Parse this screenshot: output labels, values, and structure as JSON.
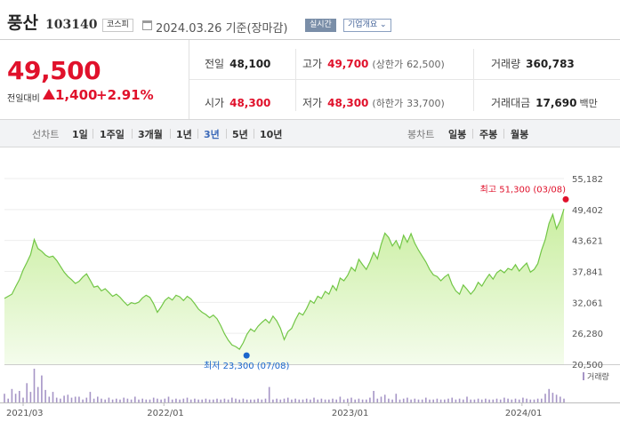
{
  "header": {
    "name": "풍산",
    "code": "103140",
    "market": "코스피",
    "date_text": "2024.03.26 기준(장마감)",
    "realtime_label": "실시간",
    "company_label": "기업개요"
  },
  "quote": {
    "price": "49,500",
    "change_label": "전일대비",
    "change_abs": "1,400",
    "change_pct": "+2.91%",
    "prev_close": {
      "label": "전일",
      "value": "48,100"
    },
    "high": {
      "label": "고가",
      "value": "49,700",
      "limit_label": "(상한가",
      "limit_value": "62,500)"
    },
    "volume": {
      "label": "거래량",
      "value": "360,783"
    },
    "open": {
      "label": "시가",
      "value": "48,300"
    },
    "low": {
      "label": "저가",
      "value": "48,300",
      "limit_label": "(하한가",
      "limit_value": "33,700)"
    },
    "amount": {
      "label": "거래대금",
      "value": "17,690",
      "unit": "백만"
    }
  },
  "toolbar": {
    "line_label": "선차트",
    "periods": [
      "1일",
      "1주일",
      "3개월",
      "1년",
      "3년",
      "5년",
      "10년"
    ],
    "active_period": "3년",
    "candle_label": "봉차트",
    "candle_periods": [
      "일봉",
      "주봉",
      "월봉"
    ]
  },
  "colors": {
    "up": "#e0112b",
    "line": "#72c646",
    "area_top": "#c9ee9f",
    "area_bottom": "#f4fcec",
    "volume": "#a695c6",
    "low_marker": "#1a66cc",
    "high_marker": "#e0112b"
  },
  "chart_data": {
    "type": "area",
    "x_ticks": [
      "2021/03",
      "2022/01",
      "2023/01",
      "2024/01"
    ],
    "y_ticks": [
      55182,
      49402,
      43621,
      37841,
      32061,
      26280,
      20500
    ],
    "y_tick_labels": [
      "55,182",
      "49,402",
      "43,621",
      "37,841",
      "32,061",
      "26,280",
      "20,500"
    ],
    "ylim": [
      20500,
      55182
    ],
    "high_label": "최고 51,300 (03/08)",
    "low_label": "최저 23,300 (07/08)",
    "high_value": 51300,
    "low_value": 23300,
    "volume_label": "거래량",
    "series": [
      {
        "values": [
          32800,
          33200,
          33600,
          35000,
          36300,
          38100,
          39500,
          41000,
          43800,
          42100,
          41600,
          40900,
          40500,
          40700,
          39900,
          38800,
          37700,
          36900,
          36300,
          35600,
          36000,
          36800,
          37400,
          36200,
          34900,
          35100,
          34200,
          34600,
          33900,
          33200,
          33600,
          33000,
          32200,
          31500,
          32000,
          31800,
          32100,
          32900,
          33400,
          33000,
          31800,
          30200,
          31200,
          32400,
          33000,
          32500,
          33400,
          33100,
          32400,
          33200,
          32700,
          31800,
          30800,
          30200,
          29800,
          29200,
          29700,
          29000,
          27700,
          26200,
          25000,
          24100,
          23800,
          23300,
          24500,
          26100,
          27100,
          26600,
          27600,
          28300,
          28900,
          28200,
          29500,
          28600,
          27200,
          25100,
          26600,
          27200,
          28800,
          30100,
          29700,
          30900,
          32400,
          31900,
          33200,
          32800,
          34100,
          33600,
          35200,
          34300,
          36600,
          36100,
          37100,
          38600,
          37900,
          40100,
          39100,
          38200,
          39600,
          41400,
          40200,
          42900,
          45000,
          44200,
          42600,
          43600,
          42100,
          44600,
          43300,
          44900,
          43100,
          41800,
          40700,
          39600,
          38200,
          37200,
          36900,
          36100,
          36800,
          37300,
          35400,
          34200,
          33600,
          35300,
          34500,
          33600,
          34400,
          35800,
          35100,
          36300,
          37300,
          36400,
          37600,
          38100,
          37600,
          38400,
          38100,
          39100,
          37900,
          38700,
          39400,
          37700,
          38200,
          39300,
          41800,
          43800,
          46800,
          48500,
          45800,
          47300,
          49500
        ],
        "volumes": [
          9,
          4,
          14,
          9,
          12,
          5,
          20,
          11,
          35,
          16,
          28,
          13,
          6,
          11,
          5,
          4,
          7,
          8,
          5,
          6,
          6,
          3,
          5,
          11,
          4,
          6,
          4,
          3,
          5,
          3,
          4,
          3,
          5,
          4,
          3,
          6,
          3,
          4,
          3,
          3,
          5,
          4,
          3,
          4,
          6,
          3,
          4,
          3,
          4,
          5,
          3,
          4,
          3,
          3,
          4,
          3,
          3,
          4,
          3,
          4,
          3,
          5,
          4,
          3,
          4,
          3,
          3,
          3,
          4,
          3,
          4,
          16,
          3,
          4,
          3,
          4,
          5,
          3,
          4,
          3,
          3,
          4,
          3,
          5,
          3,
          4,
          3,
          3,
          4,
          3,
          6,
          3,
          4,
          5,
          3,
          4,
          3,
          3,
          5,
          12,
          4,
          6,
          8,
          4,
          3,
          9,
          3,
          4,
          5,
          3,
          4,
          3,
          3,
          5,
          3,
          3,
          4,
          3,
          3,
          4,
          5,
          3,
          4,
          3,
          6,
          3,
          3,
          4,
          3,
          4,
          3,
          3,
          4,
          3,
          5,
          4,
          3,
          4,
          3,
          5,
          4,
          3,
          3,
          4,
          4,
          9,
          14,
          10,
          8,
          6,
          4
        ]
      }
    ]
  }
}
